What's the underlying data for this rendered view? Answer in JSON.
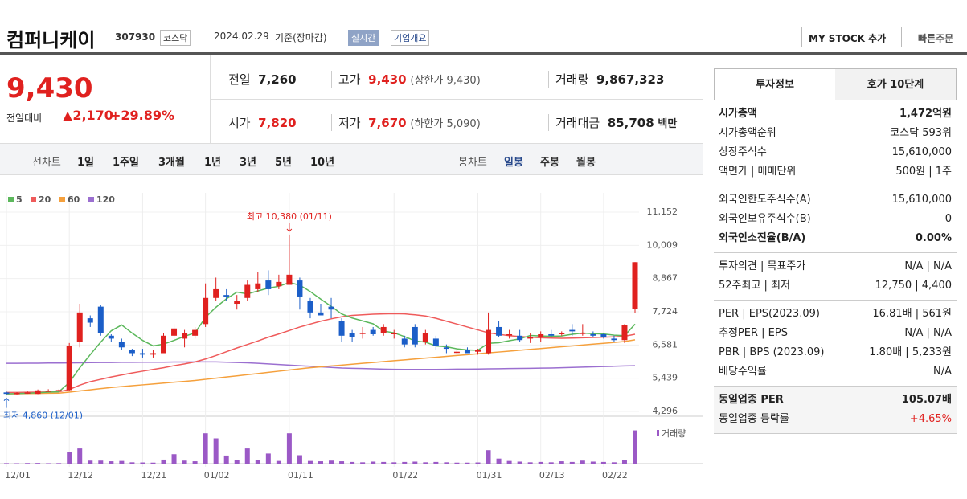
{
  "header": {
    "title": "컴퍼니케이",
    "code": "307930",
    "market": "코스닥",
    "date": "2024.02.29",
    "basis": "기준(장마감)",
    "realtime": "실시간",
    "overview": "기업개요",
    "mystock": "MY STOCK 추가",
    "quick": "빠른주문"
  },
  "price": {
    "now": "9,430",
    "change_label": "전일대비",
    "change": "2,170",
    "rate": "+29.89%"
  },
  "quote": {
    "prev_label": "전일",
    "prev": "7,260",
    "high_label": "고가",
    "high": "9,430",
    "upper": "(상한가 9,430)",
    "volume_label": "거래량",
    "volume": "9,867,323",
    "open_label": "시가",
    "open": "7,820",
    "low_label": "저가",
    "low": "7,670",
    "lower": "(하한가 5,090)",
    "amount_label": "거래대금",
    "amount": "85,708",
    "amount_unit": "백만"
  },
  "tabs": {
    "line_label": "선차트",
    "line": [
      "1일",
      "1주일",
      "3개월",
      "1년",
      "3년",
      "5년",
      "10년"
    ],
    "candle_label": "봉차트",
    "candle": [
      "일봉",
      "주봉",
      "월봉"
    ],
    "candle_active": 0
  },
  "info": {
    "tabs": [
      "투자정보",
      "호가 10단계"
    ],
    "sections": [
      [
        {
          "label": "시가총액",
          "value": "1,472억원",
          "strong": true
        },
        {
          "label": "시가총액순위",
          "value": "코스닥 593위"
        },
        {
          "label": "상장주식수",
          "value": "15,610,000"
        },
        {
          "label": "액면가 | 매매단위",
          "value": "500원 | 1주"
        }
      ],
      [
        {
          "label": "외국인한도주식수(A)",
          "value": "15,610,000"
        },
        {
          "label": "외국인보유주식수(B)",
          "value": "0"
        },
        {
          "label": "외국인소진율(B/A)",
          "value": "0.00%",
          "strong": true
        }
      ],
      [
        {
          "label": "투자의견 | 목표주가",
          "value": "N/A | N/A"
        },
        {
          "label": "52주최고 | 최저",
          "value": "12,750 | 4,400"
        }
      ],
      [
        {
          "label": "PER | EPS(2023.09)",
          "value": "16.81배 | 561원"
        },
        {
          "label": "추정PER | EPS",
          "value": "N/A | N/A"
        },
        {
          "label": "PBR | BPS (2023.09)",
          "value": "1.80배 | 5,233원"
        },
        {
          "label": "배당수익률",
          "value": "N/A"
        }
      ],
      [
        {
          "label": "동일업종 PER",
          "value": "105.07배",
          "strong": true
        },
        {
          "label": "동일업종 등락률",
          "value": "+4.65%",
          "color": "#e0211f"
        }
      ]
    ]
  },
  "chart_data": {
    "type": "candlestick",
    "up_color": "#e0211f",
    "down_color": "#1b5ec8",
    "ylim": [
      4296,
      11152
    ],
    "yticks": [
      {
        "value": 4296,
        "label": "4,296"
      },
      {
        "value": 5439,
        "label": "5,439"
      },
      {
        "value": 6581,
        "label": "6,581"
      },
      {
        "value": 7724,
        "label": "7,724"
      },
      {
        "value": 8867,
        "label": "8,867"
      },
      {
        "value": 10009,
        "label": "10,009"
      },
      {
        "value": 11152,
        "label": "11,152"
      }
    ],
    "vlim": [
      0,
      10000000
    ],
    "volume_label": "거래량",
    "volume_color": "#9b59c6",
    "annotations": [
      {
        "text": "최고 10,380 (01/11)",
        "color": "#e0211f"
      },
      {
        "text": "최저 4,860 (12/01)",
        "color": "#1b5ec8"
      }
    ],
    "categories": [
      "12/01",
      null,
      null,
      null,
      null,
      null,
      "12/12",
      null,
      null,
      null,
      null,
      null,
      null,
      "12/21",
      null,
      null,
      null,
      null,
      null,
      "01/02",
      null,
      null,
      null,
      null,
      null,
      null,
      null,
      "01/11",
      null,
      null,
      null,
      null,
      null,
      null,
      null,
      null,
      null,
      "01/22",
      null,
      null,
      null,
      null,
      null,
      null,
      null,
      "01/31",
      null,
      null,
      null,
      null,
      null,
      "02/13",
      null,
      null,
      null,
      null,
      null,
      "02/22",
      null,
      null,
      null
    ],
    "candles": [
      [
        4950,
        4980,
        4860,
        4900
      ],
      [
        4900,
        4960,
        4880,
        4930
      ],
      [
        4930,
        5000,
        4900,
        4950
      ],
      [
        4900,
        5050,
        4890,
        5020
      ],
      [
        5000,
        5060,
        4980,
        5010
      ],
      [
        5010,
        5050,
        4990,
        5030
      ],
      [
        5030,
        6650,
        5000,
        6550
      ],
      [
        6700,
        8000,
        6500,
        7700
      ],
      [
        7500,
        7600,
        7200,
        7350
      ],
      [
        7900,
        7950,
        6900,
        7000
      ],
      [
        6900,
        6950,
        6700,
        6800
      ],
      [
        6700,
        6800,
        6400,
        6500
      ],
      [
        6400,
        6450,
        6200,
        6300
      ],
      [
        6300,
        6450,
        6150,
        6250
      ],
      [
        6250,
        6400,
        6150,
        6300
      ],
      [
        6300,
        7000,
        6300,
        6900
      ],
      [
        6900,
        7300,
        6700,
        7150
      ],
      [
        6800,
        7100,
        6500,
        7000
      ],
      [
        6900,
        7200,
        6800,
        7100
      ],
      [
        7300,
        8700,
        7200,
        8200
      ],
      [
        8200,
        8900,
        8100,
        8500
      ],
      [
        8300,
        8500,
        8100,
        8250
      ],
      [
        8000,
        8300,
        7800,
        8100
      ],
      [
        8200,
        8800,
        8100,
        8650
      ],
      [
        8500,
        9100,
        8400,
        8700
      ],
      [
        8800,
        9150,
        8300,
        8500
      ],
      [
        8600,
        9000,
        8500,
        8750
      ],
      [
        8650,
        10380,
        8650,
        9000
      ],
      [
        8800,
        8900,
        7800,
        8250
      ],
      [
        8100,
        8200,
        7500,
        7700
      ],
      [
        7700,
        8000,
        7600,
        7600
      ],
      [
        7900,
        8200,
        7500,
        7800
      ],
      [
        7400,
        7500,
        6700,
        6900
      ],
      [
        7000,
        7100,
        6700,
        6850
      ],
      [
        7000,
        7200,
        6800,
        7000
      ],
      [
        7100,
        7200,
        6900,
        6950
      ],
      [
        7000,
        7300,
        6900,
        7200
      ],
      [
        6950,
        7100,
        6800,
        7000
      ],
      [
        6800,
        6900,
        6500,
        6600
      ],
      [
        7200,
        7300,
        6500,
        6600
      ],
      [
        6700,
        7100,
        6600,
        7000
      ],
      [
        6800,
        6900,
        6400,
        6550
      ],
      [
        6500,
        6600,
        6300,
        6450
      ],
      [
        6350,
        6400,
        6250,
        6350
      ],
      [
        6400,
        6500,
        6300,
        6300
      ],
      [
        6350,
        6450,
        6250,
        6400
      ],
      [
        6300,
        7700,
        6250,
        7100
      ],
      [
        7200,
        7400,
        6850,
        6900
      ],
      [
        6950,
        7100,
        6800,
        6950
      ],
      [
        6900,
        7100,
        6700,
        6750
      ],
      [
        6800,
        7000,
        6650,
        6850
      ],
      [
        6850,
        7050,
        6700,
        6950
      ],
      [
        6950,
        7100,
        6850,
        6900
      ],
      [
        6950,
        7050,
        6900,
        7000
      ],
      [
        7100,
        7300,
        6900,
        7050
      ],
      [
        7000,
        7300,
        6900,
        7000
      ],
      [
        6950,
        7050,
        6850,
        6900
      ],
      [
        6950,
        7000,
        6800,
        6850
      ],
      [
        6800,
        6900,
        6700,
        6750
      ],
      [
        6750,
        7300,
        6650,
        7260
      ],
      [
        7820,
        9430,
        7670,
        9430
      ]
    ],
    "volumes": [
      150000,
      120000,
      180000,
      200000,
      130000,
      160000,
      3500000,
      4500000,
      900000,
      900000,
      700000,
      800000,
      400000,
      350000,
      300000,
      1200000,
      2800000,
      900000,
      700000,
      9000000,
      7500000,
      2400000,
      1000000,
      4500000,
      1000000,
      3000000,
      800000,
      9000000,
      2500000,
      800000,
      700000,
      900000,
      700000,
      500000,
      400000,
      600000,
      500000,
      400000,
      500000,
      600000,
      400000,
      500000,
      400000,
      300000,
      300000,
      350000,
      4000000,
      1500000,
      800000,
      600000,
      400000,
      500000,
      400000,
      700000,
      500000,
      900000,
      600000,
      500000,
      400000,
      1000000,
      9867323
    ],
    "series": [
      {
        "name": "5",
        "color": "#5cb85c",
        "values": [
          4900,
          4910,
          4920,
          4940,
          4960,
          4970,
          5290,
          5800,
          6250,
          6680,
          7070,
          7270,
          6990,
          6740,
          6550,
          6610,
          6740,
          6880,
          7000,
          7530,
          7880,
          8170,
          8400,
          8340,
          8440,
          8540,
          8600,
          8730,
          8640,
          8420,
          8160,
          7910,
          7650,
          7510,
          7410,
          7310,
          7060,
          7000,
          6870,
          6720,
          6680,
          6550,
          6520,
          6450,
          6410,
          6400,
          6640,
          6660,
          6730,
          6790,
          6910,
          6890,
          6880,
          6890,
          6950,
          6990,
          6970,
          6960,
          6920,
          6900,
          7300
        ]
      },
      {
        "name": "20",
        "color": "#ef5b5b",
        "values": [
          4950,
          4950,
          4955,
          4960,
          4965,
          4970,
          5050,
          5200,
          5320,
          5400,
          5480,
          5550,
          5620,
          5680,
          5740,
          5800,
          5870,
          5930,
          6000,
          6100,
          6220,
          6350,
          6480,
          6600,
          6720,
          6850,
          6960,
          7080,
          7200,
          7300,
          7400,
          7480,
          7550,
          7600,
          7620,
          7640,
          7650,
          7660,
          7650,
          7620,
          7580,
          7500,
          7400,
          7300,
          7200,
          7100,
          7000,
          6950,
          6900,
          6870,
          6850,
          6830,
          6820,
          6810,
          6820,
          6830,
          6840,
          6850,
          6860,
          6880,
          6950
        ]
      },
      {
        "name": "60",
        "color": "#f5a03c",
        "values": [
          4900,
          4905,
          4910,
          4915,
          4920,
          4925,
          4960,
          5000,
          5040,
          5080,
          5120,
          5150,
          5180,
          5210,
          5240,
          5270,
          5300,
          5330,
          5360,
          5400,
          5440,
          5480,
          5520,
          5560,
          5600,
          5640,
          5680,
          5720,
          5760,
          5800,
          5830,
          5860,
          5890,
          5920,
          5950,
          5980,
          6010,
          6040,
          6070,
          6100,
          6130,
          6160,
          6190,
          6220,
          6250,
          6280,
          6310,
          6340,
          6370,
          6400,
          6430,
          6460,
          6490,
          6520,
          6550,
          6580,
          6610,
          6640,
          6670,
          6700,
          6760
        ]
      },
      {
        "name": "120",
        "color": "#9b6fd0",
        "values": [
          5950,
          5950,
          5955,
          5955,
          5960,
          5960,
          5965,
          5970,
          5975,
          5980,
          5980,
          5985,
          5985,
          5990,
          5990,
          5990,
          5995,
          5995,
          6000,
          6000,
          6000,
          5990,
          5980,
          5970,
          5950,
          5930,
          5910,
          5890,
          5870,
          5850,
          5830,
          5810,
          5790,
          5780,
          5770,
          5760,
          5750,
          5745,
          5740,
          5740,
          5740,
          5740,
          5745,
          5750,
          5750,
          5755,
          5760,
          5765,
          5770,
          5775,
          5780,
          5785,
          5790,
          5800,
          5810,
          5820,
          5830,
          5840,
          5850,
          5860,
          5870
        ]
      }
    ]
  }
}
